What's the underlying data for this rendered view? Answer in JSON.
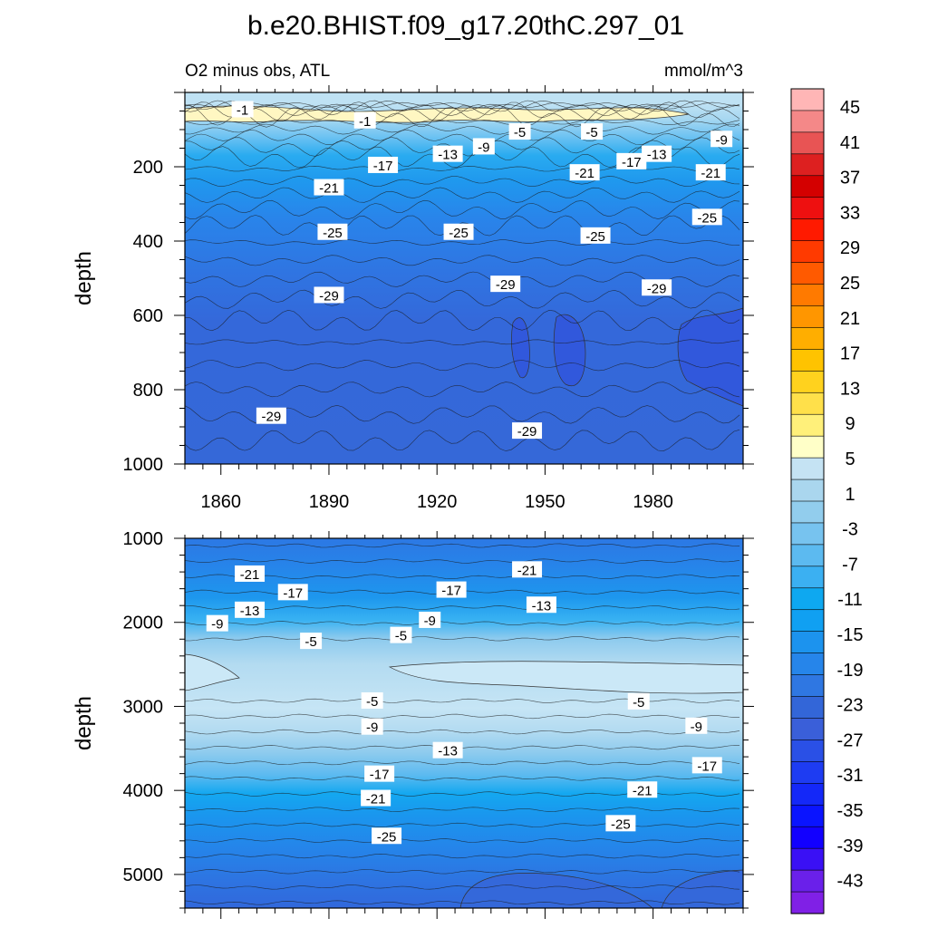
{
  "chart_data": {
    "type": "heatmap",
    "title": "b.e20.BHIST.f09_g17.20thC.297_01",
    "subtitle_left": "O2 minus obs, ATL",
    "subtitle_right": "mmol/m^3",
    "x_ticks": [
      "1860",
      "1890",
      "1920",
      "1950",
      "1980"
    ],
    "xlim": [
      1850,
      2005
    ],
    "panels": [
      {
        "ylabel": "depth",
        "ylim": [
          0,
          1000
        ],
        "y_ticks": [
          "200",
          "400",
          "600",
          "800",
          "1000"
        ],
        "contour_labels": [
          {
            "text": "-1",
            "x": 1866,
            "y": 45
          },
          {
            "text": "-1",
            "x": 1900,
            "y": 75
          },
          {
            "text": "-5",
            "x": 1943,
            "y": 105
          },
          {
            "text": "-5",
            "x": 1963,
            "y": 105
          },
          {
            "text": "-9",
            "x": 1933,
            "y": 145
          },
          {
            "text": "-9",
            "x": 1999,
            "y": 125
          },
          {
            "text": "-13",
            "x": 1923,
            "y": 165
          },
          {
            "text": "-13",
            "x": 1981,
            "y": 165
          },
          {
            "text": "-17",
            "x": 1905,
            "y": 195
          },
          {
            "text": "-17",
            "x": 1974,
            "y": 185
          },
          {
            "text": "-21",
            "x": 1890,
            "y": 255
          },
          {
            "text": "-21",
            "x": 1961,
            "y": 215
          },
          {
            "text": "-21",
            "x": 1996,
            "y": 215
          },
          {
            "text": "-25",
            "x": 1891,
            "y": 375
          },
          {
            "text": "-25",
            "x": 1926,
            "y": 375
          },
          {
            "text": "-25",
            "x": 1964,
            "y": 385
          },
          {
            "text": "-25",
            "x": 1995,
            "y": 335
          },
          {
            "text": "-29",
            "x": 1890,
            "y": 545
          },
          {
            "text": "-29",
            "x": 1939,
            "y": 515
          },
          {
            "text": "-29",
            "x": 1981,
            "y": 525
          },
          {
            "text": "-29",
            "x": 1874,
            "y": 870
          },
          {
            "text": "-29",
            "x": 1945,
            "y": 910
          }
        ]
      },
      {
        "ylabel": "depth",
        "ylim": [
          1000,
          5400
        ],
        "y_ticks": [
          "1000",
          "2000",
          "3000",
          "4000",
          "5000"
        ],
        "contour_labels": [
          {
            "text": "-21",
            "x": 1868,
            "y": 1420
          },
          {
            "text": "-21",
            "x": 1945,
            "y": 1370
          },
          {
            "text": "-17",
            "x": 1880,
            "y": 1640
          },
          {
            "text": "-17",
            "x": 1924,
            "y": 1610
          },
          {
            "text": "-13",
            "x": 1868,
            "y": 1850
          },
          {
            "text": "-13",
            "x": 1949,
            "y": 1790
          },
          {
            "text": "-9",
            "x": 1859,
            "y": 2010
          },
          {
            "text": "-9",
            "x": 1918,
            "y": 1970
          },
          {
            "text": "-5",
            "x": 1885,
            "y": 2220
          },
          {
            "text": "-5",
            "x": 1910,
            "y": 2150
          },
          {
            "text": "-5",
            "x": 1902,
            "y": 2930
          },
          {
            "text": "-5",
            "x": 1976,
            "y": 2940
          },
          {
            "text": "-9",
            "x": 1902,
            "y": 3240
          },
          {
            "text": "-9",
            "x": 1992,
            "y": 3230
          },
          {
            "text": "-13",
            "x": 1923,
            "y": 3520
          },
          {
            "text": "-17",
            "x": 1904,
            "y": 3800
          },
          {
            "text": "-17",
            "x": 1995,
            "y": 3700
          },
          {
            "text": "-21",
            "x": 1903,
            "y": 4090
          },
          {
            "text": "-21",
            "x": 1977,
            "y": 3990
          },
          {
            "text": "-25",
            "x": 1906,
            "y": 4540
          },
          {
            "text": "-25",
            "x": 1971,
            "y": 4390
          }
        ]
      }
    ],
    "colorbar": {
      "labels": [
        "45",
        "41",
        "37",
        "33",
        "29",
        "25",
        "21",
        "17",
        "13",
        "9",
        "5",
        "1",
        "-3",
        "-7",
        "-11",
        "-15",
        "-19",
        "-23",
        "-27",
        "-31",
        "-35",
        "-39",
        "-43"
      ],
      "colors": [
        "#ffb6b6",
        "#f48888",
        "#e85454",
        "#dd2020",
        "#d40000",
        "#ee1010",
        "#ff1a00",
        "#ff3a00",
        "#ff5a00",
        "#ff7a00",
        "#ff9600",
        "#ffae00",
        "#ffc300",
        "#ffd21e",
        "#ffe04a",
        "#fff07a",
        "#ffffc8",
        "#c5e3f3",
        "#aad6ee",
        "#92cded",
        "#77c3ef",
        "#5cbaf0",
        "#3bb0f2",
        "#0ea8f0",
        "#10a0f2",
        "#1c93ee",
        "#2685ea",
        "#2f77e2",
        "#3366d8",
        "#3a5fd9",
        "#2a50e6",
        "#1e3cf2",
        "#1428f8",
        "#0a14ff",
        "#1200ff",
        "#3a10f5",
        "#6a20ea",
        "#8020e6"
      ]
    }
  }
}
